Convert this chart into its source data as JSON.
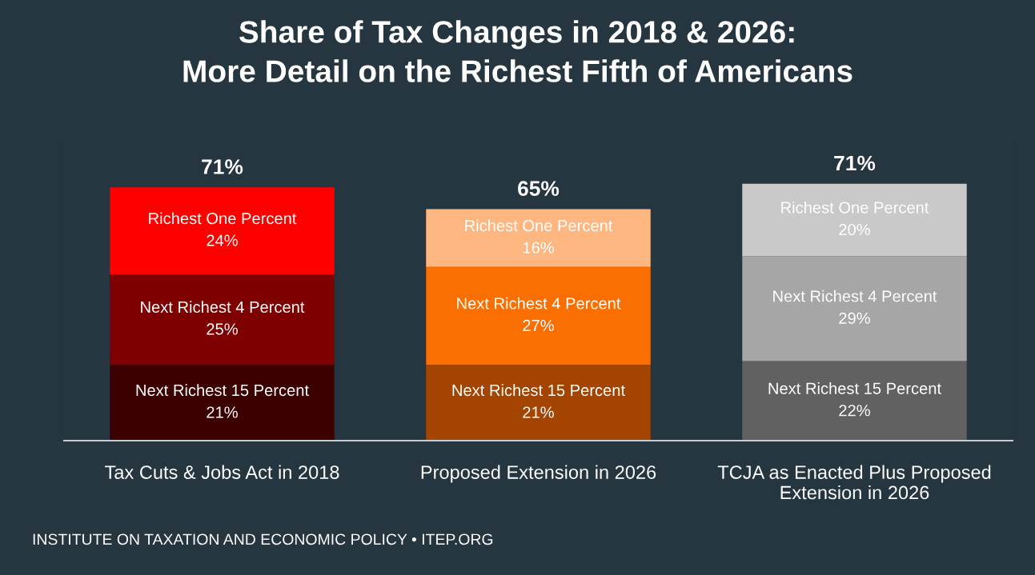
{
  "chart_data": {
    "type": "bar",
    "stacked": true,
    "title": "Share of Tax Changes in 2018 & 2026:\nMore Detail on the Richest Fifth of Americans",
    "categories": [
      "Tax Cuts & Jobs Act in 2018",
      "Proposed Extension in 2026",
      "TCJA as Enacted Plus Proposed\nExtension in 2026"
    ],
    "series": [
      {
        "name": "Next Richest 15 Percent",
        "values": [
          21,
          21,
          22
        ],
        "colors": [
          "#3d0000",
          "#a34500",
          "#616161"
        ],
        "value_labels": [
          "21%",
          "21%",
          "22%"
        ]
      },
      {
        "name": "Next Richest 4 Percent",
        "values": [
          25,
          27,
          29
        ],
        "colors": [
          "#7f0000",
          "#fb6e00",
          "#a6a6a6"
        ],
        "value_labels": [
          "25%",
          "27%",
          "29%"
        ]
      },
      {
        "name": "Richest One Percent",
        "values": [
          24,
          16,
          20
        ],
        "colors": [
          "#ff0000",
          "#ffb781",
          "#c9c9c9"
        ],
        "value_labels": [
          "24%",
          "16%",
          "20%"
        ]
      }
    ],
    "totals": [
      "71%",
      "65%",
      "71%"
    ],
    "annotations": [
      "INSTITUTE ON TAXATION AND ECONOMIC POLICY • ITEP.ORG"
    ]
  }
}
